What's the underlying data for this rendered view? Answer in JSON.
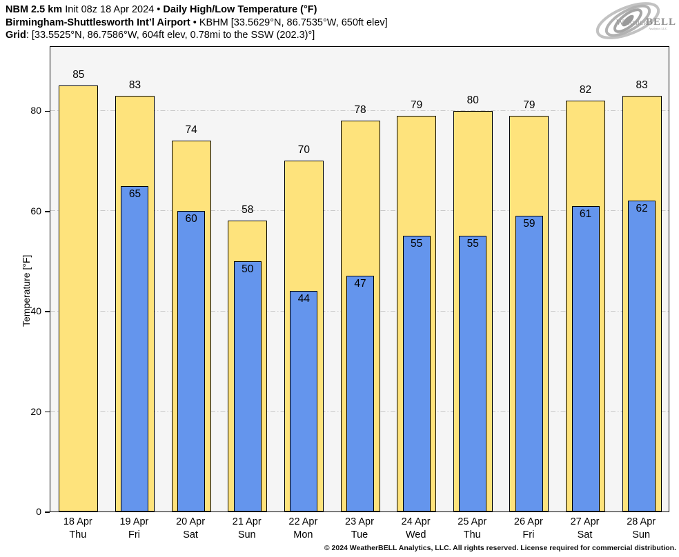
{
  "header": {
    "line1": {
      "model": "NBM 2.5 km",
      "init": "Init 08z 18 Apr 2024",
      "sep": "•",
      "product": "Daily High/Low Temperature (°F)"
    },
    "line2": {
      "station_name": "Birmingham-Shuttlesworth Int’l Airport",
      "sep": "•",
      "station_info": "KBHM [33.5629°N, 86.7535°W, 650ft elev]"
    },
    "line3": {
      "label": "Grid",
      "info": ": [33.5525°N, 86.7586°W, 604ft elev, 0.78mi to the SSW (202.3)°]"
    }
  },
  "logo": {
    "brand_weather": "Weather",
    "brand_bell": "BELL",
    "subtext": "Analytics LLC"
  },
  "chart_data": {
    "type": "bar",
    "title": "Daily High/Low Temperature (°F)",
    "xlabel": "",
    "ylabel": "Temperature [°F]",
    "ylim": [
      0,
      93
    ],
    "yticks": [
      0,
      20,
      40,
      60,
      80
    ],
    "grid": "horizontal dash-dot lines at 20, 40, 60, 80",
    "legend": "none",
    "categories": [
      {
        "date": "18 Apr",
        "day": "Thu"
      },
      {
        "date": "19 Apr",
        "day": "Fri"
      },
      {
        "date": "20 Apr",
        "day": "Sat"
      },
      {
        "date": "21 Apr",
        "day": "Sun"
      },
      {
        "date": "22 Apr",
        "day": "Mon"
      },
      {
        "date": "23 Apr",
        "day": "Tue"
      },
      {
        "date": "24 Apr",
        "day": "Wed"
      },
      {
        "date": "25 Apr",
        "day": "Thu"
      },
      {
        "date": "26 Apr",
        "day": "Fri"
      },
      {
        "date": "27 Apr",
        "day": "Sat"
      },
      {
        "date": "28 Apr",
        "day": "Sun"
      }
    ],
    "series": [
      {
        "name": "High",
        "color": "#FEE37C",
        "values": [
          85,
          83,
          74,
          58,
          70,
          78,
          79,
          80,
          79,
          82,
          83
        ]
      },
      {
        "name": "Low",
        "color": "#6495ED",
        "values": [
          null,
          65,
          60,
          50,
          44,
          47,
          55,
          55,
          59,
          61,
          62
        ]
      }
    ]
  },
  "colors": {
    "high_bar": "#FEE37C",
    "low_bar": "#6495ED",
    "bar_outline": "#000000",
    "plot_background": "#f5f5f5",
    "gridline": "#c8c8c8",
    "text": "#000000",
    "logo_gray": "#a5a5a5"
  },
  "footer": {
    "copyright": "© 2024 WeatherBELL Analytics, LLC. All rights reserved. License required for commercial distribution."
  }
}
